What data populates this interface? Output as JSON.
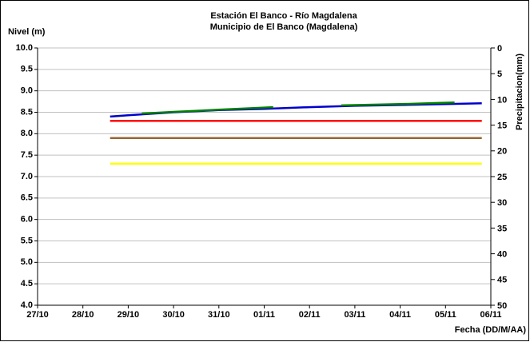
{
  "chart_data": {
    "type": "line",
    "title": "Estación El Banco - Río Magdalena",
    "subtitle": "Municipio de El Banco (Magdalena)",
    "y_label": "Nivel (m)",
    "y2_label": "Precipitacion(mm)",
    "x_label": "Fecha (DD/M/AA)",
    "xlim": [
      27,
      37
    ],
    "xticks": [
      {
        "value": 27,
        "label": "27/10"
      },
      {
        "value": 28,
        "label": "28/10"
      },
      {
        "value": 29,
        "label": "29/10"
      },
      {
        "value": 30,
        "label": "30/10"
      },
      {
        "value": 31,
        "label": "31/10"
      },
      {
        "value": 32,
        "label": "01/11"
      },
      {
        "value": 33,
        "label": "02/11"
      },
      {
        "value": 34,
        "label": "03/11"
      },
      {
        "value": 35,
        "label": "04/11"
      },
      {
        "value": 36,
        "label": "05/11"
      },
      {
        "value": 37,
        "label": "06/11"
      }
    ],
    "ylim": [
      4,
      10
    ],
    "yticks": [
      {
        "value": 4,
        "label": "4.0"
      },
      4.5,
      {
        "value": 5,
        "label": "5.0"
      },
      5.5,
      {
        "value": 6,
        "label": "6.0"
      },
      6.5,
      {
        "value": 7,
        "label": "7.0"
      },
      7.5,
      {
        "value": 8,
        "label": "8.0"
      },
      8.5,
      {
        "value": 9,
        "label": "9.0"
      },
      9.5,
      {
        "value": 10,
        "label": "10.0"
      }
    ],
    "y2lim": [
      50,
      0
    ],
    "y2ticks": [
      0,
      5,
      10,
      15,
      20,
      25,
      30,
      35,
      40,
      45,
      50
    ],
    "grid": true,
    "series": [
      {
        "color": "#ff0000",
        "x": [
          28.6,
          36.8
        ],
        "values": [
          8.3,
          8.3
        ]
      },
      {
        "color": "#996633",
        "x": [
          28.6,
          36.8
        ],
        "values": [
          7.9,
          7.9
        ]
      },
      {
        "color": "#ffff00",
        "x": [
          28.6,
          36.8
        ],
        "values": [
          7.3,
          7.3
        ]
      },
      {
        "color": "#0000cc",
        "x": [
          28.6,
          29,
          30,
          31,
          32,
          33,
          34,
          35,
          36,
          36.8
        ],
        "values": [
          8.4,
          8.43,
          8.5,
          8.55,
          8.58,
          8.62,
          8.65,
          8.67,
          8.69,
          8.71
        ]
      },
      {
        "color": "#008000",
        "x": [
          29.3,
          30,
          31,
          32.2,
          33,
          33.7,
          35,
          36.2
        ],
        "values": [
          8.47,
          8.51,
          8.56,
          8.62,
          null,
          8.66,
          8.69,
          8.73
        ]
      }
    ]
  }
}
